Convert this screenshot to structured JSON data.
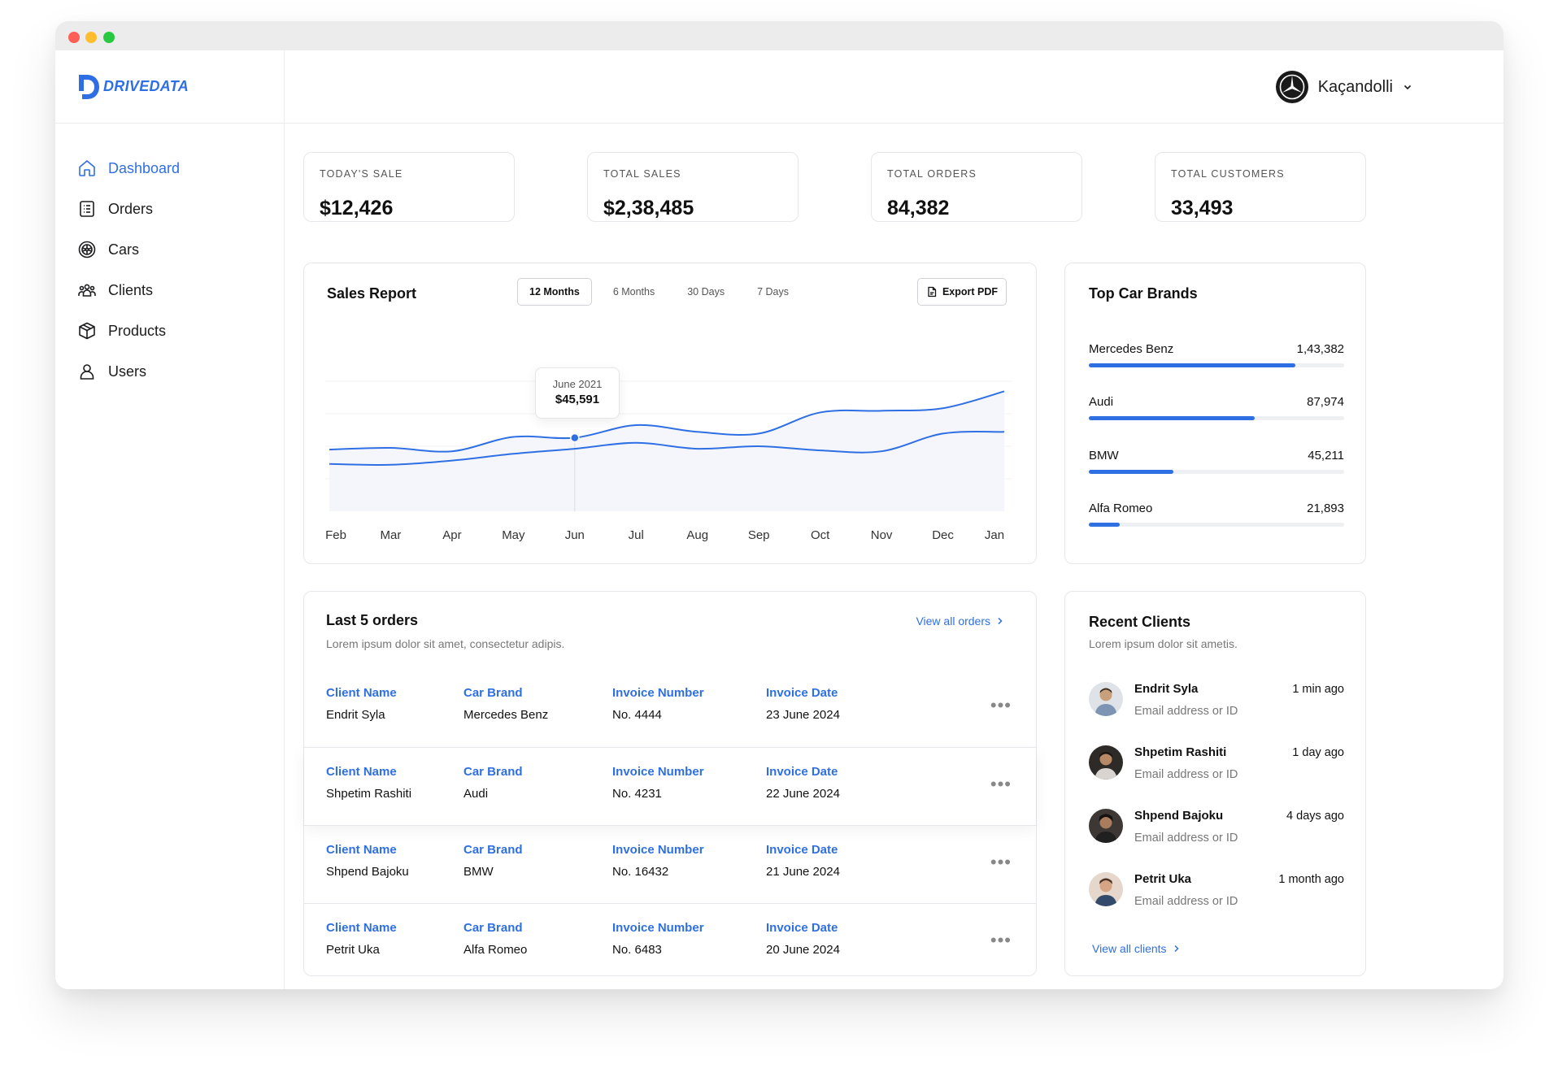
{
  "app": {
    "brand": "DRIVEDATA"
  },
  "colors": {
    "accent": "#2f6fe4",
    "bar_track": "#eef0f3",
    "title_bar": "#ececec"
  },
  "sidebar": {
    "items": [
      {
        "label": "Dashboard",
        "icon": "home-icon",
        "active": true
      },
      {
        "label": "Orders",
        "icon": "list-icon"
      },
      {
        "label": "Cars",
        "icon": "wheel-icon"
      },
      {
        "label": "Clients",
        "icon": "people-icon"
      },
      {
        "label": "Products",
        "icon": "box-icon"
      },
      {
        "label": "Users",
        "icon": "user-icon"
      }
    ]
  },
  "header": {
    "user_name": "Kaçandolli",
    "avatar_icon": "mercedes-logo-icon"
  },
  "stats": [
    {
      "label": "TODAY'S SALE",
      "value": "$12,426"
    },
    {
      "label": "TOTAL SALES",
      "value": "$2,38,485"
    },
    {
      "label": "TOTAL ORDERS",
      "value": "84,382"
    },
    {
      "label": "TOTAL CUSTOMERS",
      "value": "33,493"
    }
  ],
  "sales_report": {
    "title": "Sales Report",
    "tabs": [
      "12 Months",
      "6 Months",
      "30 Days",
      "7 Days"
    ],
    "active_tab": 0,
    "export_label": "Export PDF",
    "tooltip": {
      "date": "June 2021",
      "value": "$45,591"
    }
  },
  "chart_data": {
    "type": "line",
    "categories": [
      "Feb",
      "Mar",
      "Apr",
      "May",
      "Jun",
      "Jul",
      "Aug",
      "Sep",
      "Oct",
      "Nov",
      "Dec",
      "Jan"
    ],
    "series": [
      {
        "values": [
          0.49,
          0.51,
          0.47,
          0.64,
          0.63,
          0.78,
          0.7,
          0.68,
          0.93,
          0.95,
          0.98,
          1.18
        ]
      },
      {
        "values": [
          0.32,
          0.31,
          0.36,
          0.44,
          0.5,
          0.57,
          0.5,
          0.53,
          0.48,
          0.47,
          0.68,
          0.7
        ]
      }
    ],
    "highlight": {
      "category": "Jun",
      "value": 45591,
      "label": "June 2021"
    },
    "grid": true,
    "legend": "none"
  },
  "top_brands": {
    "title": "Top Car Brands",
    "items": [
      {
        "name": "Mercedes Benz",
        "value": "1,43,382",
        "fraction": 0.81
      },
      {
        "name": "Audi",
        "value": "87,974",
        "fraction": 0.65
      },
      {
        "name": "BMW",
        "value": "45,211",
        "fraction": 0.33
      },
      {
        "name": "Alfa Romeo",
        "value": "21,893",
        "fraction": 0.12
      }
    ]
  },
  "orders": {
    "title": "Last 5 orders",
    "subtitle": "Lorem ipsum dolor sit amet, consectetur adipis.",
    "view_all": "View all orders",
    "headers": {
      "client": "Client Name",
      "brand": "Car Brand",
      "invoice": "Invoice Number",
      "date": "Invoice Date"
    },
    "rows": [
      {
        "client": "Endrit Syla",
        "brand": "Mercedes Benz",
        "invoice": "No. 4444",
        "date": "23 June 2024"
      },
      {
        "client": "Shpetim Rashiti",
        "brand": "Audi",
        "invoice": "No. 4231",
        "date": "22 June 2024"
      },
      {
        "client": "Shpend Bajoku",
        "brand": "BMW",
        "invoice": "No. 16432",
        "date": "21 June 2024"
      },
      {
        "client": "Petrit Uka",
        "brand": "Alfa Romeo",
        "invoice": "No. 6483",
        "date": "20 June 2024"
      }
    ],
    "more_label": "•••"
  },
  "recent_clients": {
    "title": "Recent Clients",
    "subtitle": "Lorem ipsum dolor sit ametis.",
    "view_all": "View all clients",
    "items": [
      {
        "name": "Endrit Syla",
        "sub": "Email address or ID",
        "time": "1 min ago"
      },
      {
        "name": "Shpetim Rashiti",
        "sub": "Email address or ID",
        "time": "1 day ago"
      },
      {
        "name": "Shpend Bajoku",
        "sub": "Email address or ID",
        "time": "4 days ago"
      },
      {
        "name": "Petrit Uka",
        "sub": "Email address or ID",
        "time": "1 month ago"
      }
    ]
  }
}
